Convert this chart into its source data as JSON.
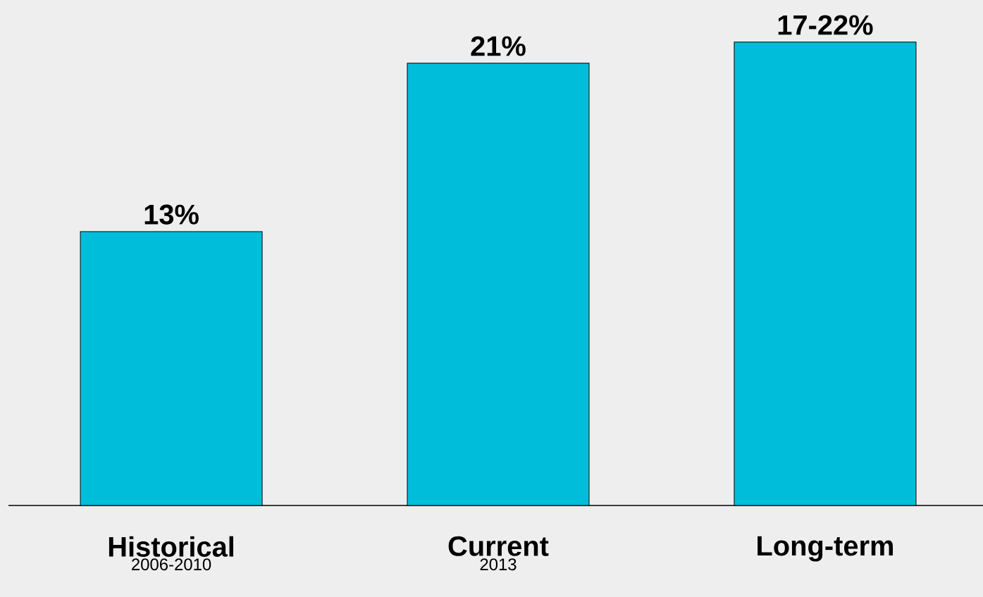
{
  "chart_data": {
    "type": "bar",
    "categories": [
      "Historical",
      "Current",
      "Long-term"
    ],
    "values": [
      13,
      21,
      22
    ],
    "value_labels": [
      "13%",
      "21%",
      null
    ],
    "color": "#00bed9",
    "ylim": [
      0,
      24
    ],
    "annotations": [
      "2006-2010",
      "2013",
      {
        "text": "17-22%",
        "x": "Long-term",
        "y": 22
      }
    ]
  }
}
